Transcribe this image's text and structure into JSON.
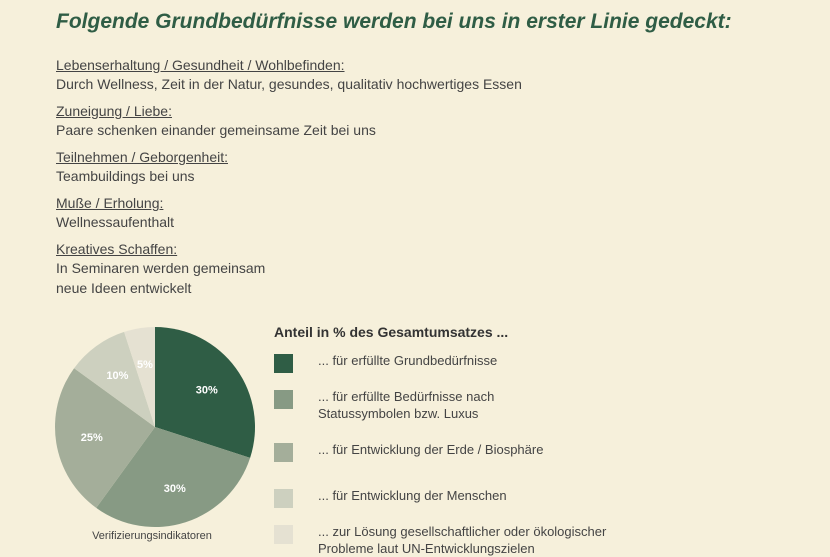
{
  "headline": "Folgende Grundbedürfnisse werden bei uns in erster Linie gedeckt:",
  "needs": [
    {
      "title": "Lebenserhaltung / Gesundheit / Wohlbefinden:",
      "lines": [
        "Durch Wellness, Zeit in der Natur, gesundes, qualitativ hochwertiges Essen"
      ]
    },
    {
      "title": "Zuneigung / Liebe:",
      "lines": [
        "Paare schenken einander gemeinsame Zeit bei uns"
      ]
    },
    {
      "title": "Teilnehmen / Geborgenheit:",
      "lines": [
        "Teambuildings bei uns"
      ]
    },
    {
      "title": "Muße / Erholung:",
      "lines": [
        "Wellnessaufenthalt"
      ]
    },
    {
      "title": "Kreatives Schaffen:",
      "lines": [
        "In Seminaren werden gemeinsam",
        "neue Ideen entwickelt"
      ]
    }
  ],
  "chart_caption": "Verifizierungsindikatoren",
  "legend": {
    "title": "Anteil in % des Gesamtumsatzes ...",
    "items": [
      {
        "lines": [
          "... für erfüllte Grundbedürfnisse"
        ]
      },
      {
        "lines": [
          "... für erfüllte Bedürfnisse nach",
          "Statussymbolen bzw. Luxus"
        ]
      },
      {
        "lines": [
          "... für Entwicklung der Erde / Biosphäre"
        ]
      },
      {
        "lines": [
          "... für Entwicklung der Menschen"
        ]
      },
      {
        "lines": [
          "... zur Lösung gesellschaftlicher oder ökologischer",
          "Probleme laut UN-Entwicklungszielen"
        ]
      }
    ]
  },
  "colors": {
    "background": "#f6f0db",
    "headline": "#2f5d45",
    "slices": [
      "#2f5d45",
      "#879a84",
      "#a4ae9a",
      "#cdd0bf",
      "#e5e1d2"
    ],
    "slice_labels": "#ffffff"
  },
  "chart_data": {
    "type": "pie",
    "start_angle_deg": 0,
    "slices": [
      {
        "label": "30%",
        "value": 30
      },
      {
        "label": "30%",
        "value": 30
      },
      {
        "label": "25%",
        "value": 25
      },
      {
        "label": "10%",
        "value": 10
      },
      {
        "label": "5%",
        "value": 5
      }
    ]
  }
}
